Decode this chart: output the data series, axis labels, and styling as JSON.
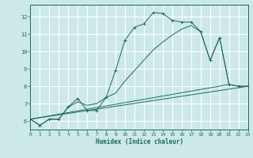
{
  "xlabel": "Humidex (Indice chaleur)",
  "bg_color": "#cce8e8",
  "grid_color": "#ffffff",
  "line_color": "#1a6b5a",
  "xlim": [
    0,
    23
  ],
  "ylim": [
    5.5,
    12.7
  ],
  "xticks": [
    0,
    1,
    2,
    3,
    4,
    5,
    6,
    7,
    8,
    9,
    10,
    11,
    12,
    13,
    14,
    15,
    16,
    17,
    18,
    19,
    20,
    21,
    22,
    23
  ],
  "yticks": [
    6,
    7,
    8,
    9,
    10,
    11,
    12
  ],
  "line1_marked": {
    "x": [
      0,
      1,
      2,
      3,
      4,
      5,
      6,
      7,
      8,
      9,
      10,
      11,
      12,
      13,
      14,
      15,
      16,
      17,
      18,
      19,
      20,
      21,
      22,
      23
    ],
    "y": [
      6.1,
      5.75,
      6.1,
      6.1,
      6.8,
      7.3,
      6.6,
      6.6,
      7.35,
      8.9,
      10.65,
      11.4,
      11.6,
      12.25,
      12.2,
      11.8,
      11.7,
      11.7,
      11.15,
      9.5,
      10.8,
      8.1,
      8.0,
      8.0
    ]
  },
  "line2": {
    "x": [
      0,
      1,
      2,
      3,
      4,
      5,
      6,
      7,
      8,
      9,
      10,
      11,
      12,
      13,
      14,
      15,
      16,
      17,
      18,
      19,
      20,
      21,
      22,
      23
    ],
    "y": [
      6.1,
      5.75,
      6.1,
      6.1,
      6.8,
      7.1,
      6.9,
      7.0,
      7.35,
      7.6,
      8.3,
      8.9,
      9.5,
      10.1,
      10.55,
      10.95,
      11.3,
      11.5,
      11.15,
      9.5,
      10.8,
      8.1,
      8.0,
      8.0
    ]
  },
  "line3_straight": {
    "x": [
      0,
      23
    ],
    "y": [
      6.1,
      8.0
    ]
  },
  "line4_straight": {
    "x": [
      0,
      21
    ],
    "y": [
      6.1,
      8.1
    ]
  }
}
